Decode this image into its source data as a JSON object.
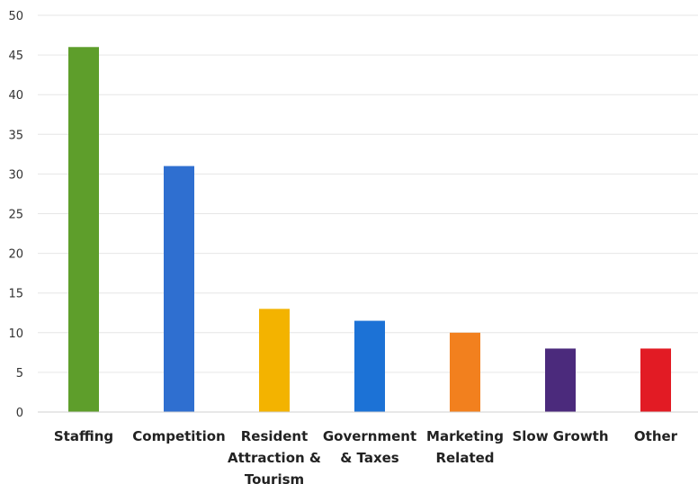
{
  "chart_data": {
    "type": "bar",
    "title": "",
    "xlabel": "",
    "ylabel": "",
    "ylim": [
      0,
      50
    ],
    "yticks": [
      0,
      5,
      10,
      15,
      20,
      25,
      30,
      35,
      40,
      45,
      50
    ],
    "grid": true,
    "legend": "none",
    "categories": [
      [
        "Staffing"
      ],
      [
        "Competition"
      ],
      [
        "Resident",
        "Attraction &",
        "Tourism"
      ],
      [
        "Government",
        "& Taxes"
      ],
      [
        "Marketing",
        "Related"
      ],
      [
        "Slow Growth"
      ],
      [
        "Other"
      ]
    ],
    "values": [
      46,
      31,
      13,
      11.5,
      10,
      8,
      8
    ],
    "colors": [
      "#5e9e2b",
      "#2f6fd0",
      "#f3b300",
      "#1c72d6",
      "#f2801e",
      "#4b2a7c",
      "#e21b24"
    ]
  }
}
